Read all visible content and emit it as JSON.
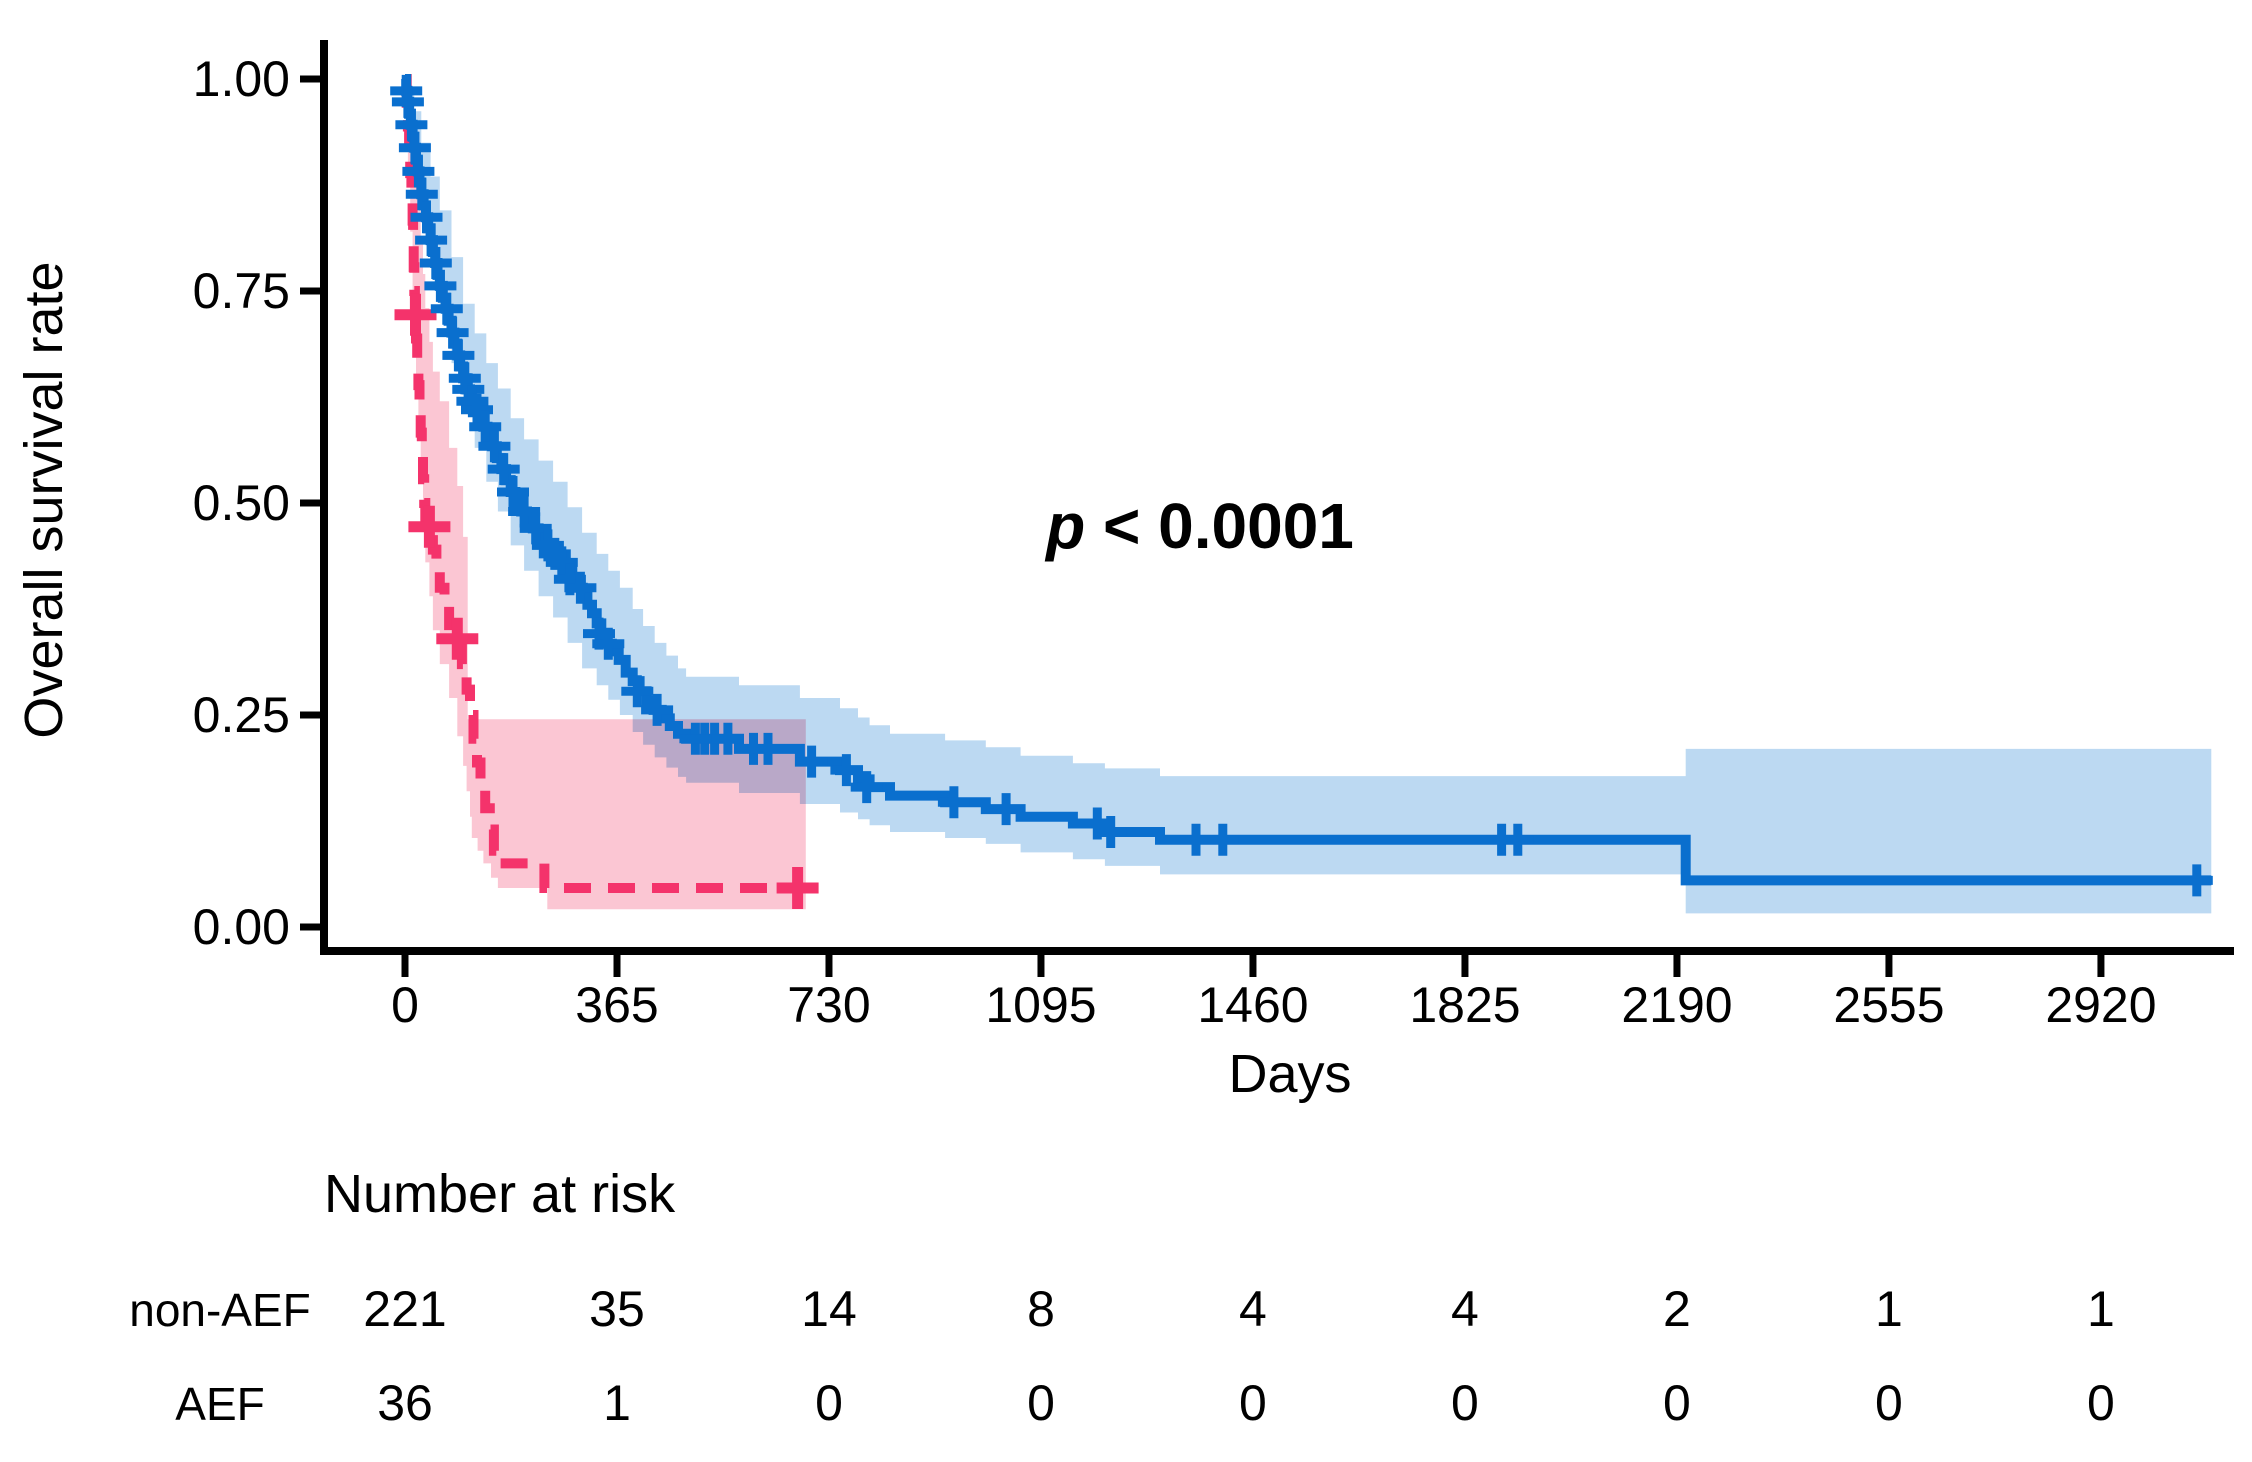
{
  "chart_data": {
    "type": "line",
    "subtype": "kaplan-meier-step-with-confidence-bands",
    "title": "",
    "xlabel": "Days",
    "ylabel": "Overall survival rate",
    "xlim": [
      0,
      3130
    ],
    "ylim": [
      0.0,
      1.0
    ],
    "grid": false,
    "legend_position": "none",
    "x_ticks": [
      0,
      365,
      730,
      1095,
      1460,
      1825,
      2190,
      2555,
      2920
    ],
    "y_ticks": [
      0.0,
      0.25,
      0.5,
      0.75,
      1.0
    ],
    "y_tick_labels": [
      "0.00",
      "0.25",
      "0.50",
      "0.75",
      "1.00"
    ],
    "annotation": {
      "p_italic": "p",
      "p_rest": " < 0.0001"
    },
    "series": [
      {
        "name": "non-AEF",
        "color": "#0a6fce",
        "band_color": "#bcd9f2",
        "line_style": "solid",
        "end_day": 3110,
        "points": [
          [
            0,
            1.0
          ],
          [
            2,
            0.986
          ],
          [
            4,
            0.973
          ],
          [
            7,
            0.959
          ],
          [
            10,
            0.946
          ],
          [
            13,
            0.932
          ],
          [
            16,
            0.919
          ],
          [
            19,
            0.905
          ],
          [
            22,
            0.891
          ],
          [
            25,
            0.878
          ],
          [
            28,
            0.864
          ],
          [
            32,
            0.851
          ],
          [
            36,
            0.837
          ],
          [
            40,
            0.824
          ],
          [
            44,
            0.81
          ],
          [
            48,
            0.796
          ],
          [
            52,
            0.783
          ],
          [
            56,
            0.769
          ],
          [
            60,
            0.756
          ],
          [
            65,
            0.742
          ],
          [
            70,
            0.729
          ],
          [
            75,
            0.715
          ],
          [
            80,
            0.701
          ],
          [
            85,
            0.688
          ],
          [
            90,
            0.674
          ],
          [
            95,
            0.661
          ],
          [
            100,
            0.647
          ],
          [
            106,
            0.634
          ],
          [
            112,
            0.62
          ],
          [
            120,
            0.61
          ],
          [
            128,
            0.6
          ],
          [
            135,
            0.59
          ],
          [
            142,
            0.58
          ],
          [
            150,
            0.567
          ],
          [
            158,
            0.553
          ],
          [
            166,
            0.54
          ],
          [
            174,
            0.527
          ],
          [
            182,
            0.513
          ],
          [
            190,
            0.5
          ],
          [
            200,
            0.49
          ],
          [
            210,
            0.48
          ],
          [
            220,
            0.47
          ],
          [
            230,
            0.46
          ],
          [
            240,
            0.45
          ],
          [
            252,
            0.44
          ],
          [
            264,
            0.43
          ],
          [
            276,
            0.42
          ],
          [
            288,
            0.41
          ],
          [
            298,
            0.4
          ],
          [
            306,
            0.39
          ],
          [
            314,
            0.38
          ],
          [
            322,
            0.37
          ],
          [
            330,
            0.358
          ],
          [
            338,
            0.346
          ],
          [
            346,
            0.334
          ],
          [
            356,
            0.325
          ],
          [
            368,
            0.315
          ],
          [
            380,
            0.3
          ],
          [
            392,
            0.29
          ],
          [
            404,
            0.278
          ],
          [
            416,
            0.267
          ],
          [
            428,
            0.256
          ],
          [
            442,
            0.246
          ],
          [
            456,
            0.237
          ],
          [
            470,
            0.228
          ],
          [
            484,
            0.222
          ],
          [
            575,
            0.21
          ],
          [
            680,
            0.195
          ],
          [
            749,
            0.185
          ],
          [
            780,
            0.174
          ],
          [
            800,
            0.165
          ],
          [
            835,
            0.155
          ],
          [
            930,
            0.147
          ],
          [
            1000,
            0.139
          ],
          [
            1060,
            0.13
          ],
          [
            1150,
            0.122
          ],
          [
            1205,
            0.112
          ],
          [
            1300,
            0.103
          ],
          [
            2205,
            0.055
          ]
        ],
        "censor_days": [
          [
            2,
            0.986
          ],
          [
            5,
            0.973
          ],
          [
            11,
            0.946
          ],
          [
            17,
            0.919
          ],
          [
            23,
            0.891
          ],
          [
            29,
            0.864
          ],
          [
            37,
            0.837
          ],
          [
            45,
            0.81
          ],
          [
            53,
            0.783
          ],
          [
            61,
            0.756
          ],
          [
            72,
            0.729
          ],
          [
            82,
            0.701
          ],
          [
            92,
            0.674
          ],
          [
            103,
            0.647
          ],
          [
            109,
            0.634
          ],
          [
            116,
            0.62
          ],
          [
            124,
            0.61
          ],
          [
            138,
            0.59
          ],
          [
            154,
            0.567
          ],
          [
            170,
            0.54
          ],
          [
            186,
            0.513
          ],
          [
            205,
            0.49
          ],
          [
            225,
            0.47
          ],
          [
            246,
            0.45
          ],
          [
            258,
            0.44
          ],
          [
            270,
            0.43
          ],
          [
            284,
            0.41
          ],
          [
            302,
            0.4
          ],
          [
            334,
            0.346
          ],
          [
            350,
            0.334
          ],
          [
            400,
            0.278
          ],
          [
            434,
            0.256
          ],
          [
            500,
            0.222
          ],
          [
            516,
            0.222
          ],
          [
            533,
            0.222
          ],
          [
            556,
            0.222
          ],
          [
            600,
            0.21
          ],
          [
            625,
            0.21
          ],
          [
            700,
            0.195
          ],
          [
            760,
            0.185
          ],
          [
            795,
            0.165
          ],
          [
            945,
            0.147
          ],
          [
            1035,
            0.139
          ],
          [
            1192,
            0.122
          ],
          [
            1215,
            0.112
          ],
          [
            1362,
            0.103
          ],
          [
            1408,
            0.103
          ],
          [
            1888,
            0.103
          ],
          [
            1916,
            0.103
          ],
          [
            3085,
            0.055
          ]
        ],
        "ci_upper": [
          [
            0,
            1.0
          ],
          [
            8,
            0.985
          ],
          [
            16,
            0.962
          ],
          [
            28,
            0.925
          ],
          [
            44,
            0.885
          ],
          [
            60,
            0.845
          ],
          [
            80,
            0.79
          ],
          [
            100,
            0.735
          ],
          [
            120,
            0.7
          ],
          [
            140,
            0.665
          ],
          [
            160,
            0.635
          ],
          [
            182,
            0.6
          ],
          [
            205,
            0.575
          ],
          [
            230,
            0.55
          ],
          [
            255,
            0.525
          ],
          [
            280,
            0.495
          ],
          [
            305,
            0.465
          ],
          [
            330,
            0.44
          ],
          [
            350,
            0.42
          ],
          [
            370,
            0.4
          ],
          [
            392,
            0.375
          ],
          [
            410,
            0.355
          ],
          [
            430,
            0.335
          ],
          [
            450,
            0.32
          ],
          [
            470,
            0.305
          ],
          [
            484,
            0.295
          ],
          [
            575,
            0.285
          ],
          [
            680,
            0.27
          ],
          [
            749,
            0.258
          ],
          [
            780,
            0.247
          ],
          [
            800,
            0.238
          ],
          [
            835,
            0.228
          ],
          [
            930,
            0.22
          ],
          [
            1000,
            0.212
          ],
          [
            1060,
            0.202
          ],
          [
            1150,
            0.193
          ],
          [
            1205,
            0.187
          ],
          [
            1300,
            0.178
          ],
          [
            2205,
            0.21
          ]
        ],
        "ci_lower": [
          [
            0,
            1.0
          ],
          [
            8,
            0.93
          ],
          [
            16,
            0.895
          ],
          [
            28,
            0.845
          ],
          [
            44,
            0.79
          ],
          [
            60,
            0.73
          ],
          [
            80,
            0.665
          ],
          [
            100,
            0.605
          ],
          [
            120,
            0.565
          ],
          [
            140,
            0.525
          ],
          [
            160,
            0.49
          ],
          [
            182,
            0.45
          ],
          [
            205,
            0.42
          ],
          [
            230,
            0.39
          ],
          [
            255,
            0.365
          ],
          [
            280,
            0.335
          ],
          [
            305,
            0.305
          ],
          [
            330,
            0.285
          ],
          [
            350,
            0.268
          ],
          [
            370,
            0.25
          ],
          [
            392,
            0.23
          ],
          [
            410,
            0.215
          ],
          [
            430,
            0.2
          ],
          [
            450,
            0.188
          ],
          [
            470,
            0.177
          ],
          [
            484,
            0.17
          ],
          [
            575,
            0.158
          ],
          [
            680,
            0.145
          ],
          [
            749,
            0.135
          ],
          [
            780,
            0.127
          ],
          [
            800,
            0.12
          ],
          [
            835,
            0.112
          ],
          [
            930,
            0.105
          ],
          [
            1000,
            0.098
          ],
          [
            1060,
            0.088
          ],
          [
            1150,
            0.08
          ],
          [
            1205,
            0.072
          ],
          [
            1300,
            0.062
          ],
          [
            2205,
            0.016
          ]
        ]
      },
      {
        "name": "AEF",
        "color": "#f4336b",
        "band_color": "#fbc6d3",
        "line_style": "dashed",
        "end_day": 690,
        "points": [
          [
            0,
            1.0
          ],
          [
            3,
            0.972
          ],
          [
            5,
            0.944
          ],
          [
            7,
            0.917
          ],
          [
            9,
            0.889
          ],
          [
            11,
            0.861
          ],
          [
            13,
            0.833
          ],
          [
            14,
            0.806
          ],
          [
            15,
            0.778
          ],
          [
            16,
            0.75
          ],
          [
            17,
            0.722
          ],
          [
            19,
            0.694
          ],
          [
            21,
            0.667
          ],
          [
            23,
            0.639
          ],
          [
            25,
            0.611
          ],
          [
            27,
            0.583
          ],
          [
            29,
            0.556
          ],
          [
            31,
            0.528
          ],
          [
            33,
            0.5
          ],
          [
            35,
            0.472
          ],
          [
            48,
            0.445
          ],
          [
            54,
            0.42
          ],
          [
            60,
            0.4
          ],
          [
            68,
            0.378
          ],
          [
            76,
            0.356
          ],
          [
            84,
            0.34
          ],
          [
            98,
            0.31
          ],
          [
            106,
            0.28
          ],
          [
            112,
            0.25
          ],
          [
            118,
            0.222
          ],
          [
            124,
            0.194
          ],
          [
            130,
            0.167
          ],
          [
            138,
            0.14
          ],
          [
            146,
            0.115
          ],
          [
            153,
            0.09
          ],
          [
            160,
            0.075
          ],
          [
            240,
            0.046
          ]
        ],
        "censor_days": [
          [
            18,
            0.722
          ],
          [
            42,
            0.472
          ],
          [
            90,
            0.34
          ],
          [
            676,
            0.046
          ]
        ],
        "ci_upper": [
          [
            0,
            1.0
          ],
          [
            5,
            0.995
          ],
          [
            9,
            0.975
          ],
          [
            13,
            0.945
          ],
          [
            16,
            0.91
          ],
          [
            19,
            0.88
          ],
          [
            23,
            0.845
          ],
          [
            27,
            0.81
          ],
          [
            31,
            0.77
          ],
          [
            35,
            0.73
          ],
          [
            42,
            0.69
          ],
          [
            48,
            0.655
          ],
          [
            60,
            0.62
          ],
          [
            76,
            0.565
          ],
          [
            90,
            0.52
          ],
          [
            100,
            0.46
          ],
          [
            108,
            0.245
          ],
          [
            690,
            0.245
          ]
        ],
        "ci_lower": [
          [
            0,
            1.0
          ],
          [
            5,
            0.88
          ],
          [
            9,
            0.82
          ],
          [
            13,
            0.75
          ],
          [
            16,
            0.69
          ],
          [
            19,
            0.64
          ],
          [
            23,
            0.585
          ],
          [
            27,
            0.53
          ],
          [
            31,
            0.48
          ],
          [
            35,
            0.43
          ],
          [
            42,
            0.39
          ],
          [
            48,
            0.35
          ],
          [
            60,
            0.31
          ],
          [
            76,
            0.27
          ],
          [
            90,
            0.225
          ],
          [
            100,
            0.19
          ],
          [
            106,
            0.16
          ],
          [
            112,
            0.13
          ],
          [
            115,
            0.105
          ],
          [
            125,
            0.09
          ],
          [
            135,
            0.075
          ],
          [
            148,
            0.058
          ],
          [
            160,
            0.046
          ],
          [
            245,
            0.021
          ],
          [
            690,
            0.021
          ]
        ]
      }
    ],
    "risk_table": {
      "title": "Number at risk",
      "columns_days": [
        0,
        365,
        730,
        1095,
        1460,
        1825,
        2190,
        2555,
        2920
      ],
      "rows": [
        {
          "label": "non-AEF",
          "color": "#0e72dc",
          "values": [
            "221",
            "35",
            "14",
            "8",
            "4",
            "4",
            "2",
            "1",
            "1"
          ]
        },
        {
          "label": "AEF",
          "color": "#f4336b",
          "values": [
            "36",
            "1",
            "0",
            "0",
            "0",
            "0",
            "0",
            "0",
            "0"
          ]
        }
      ]
    }
  }
}
